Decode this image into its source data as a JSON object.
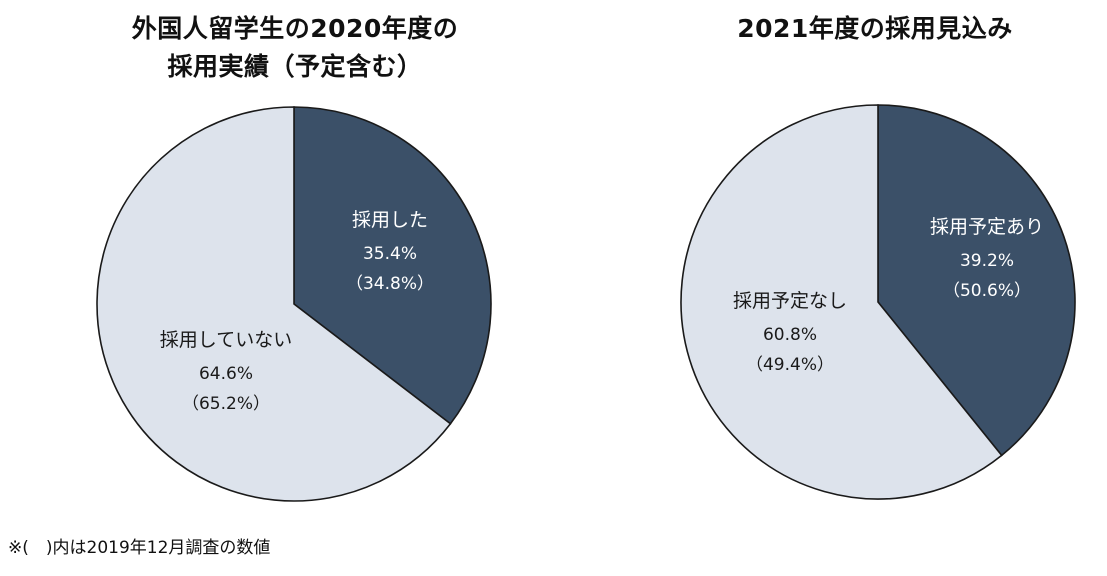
{
  "footnote": "※(　)内は2019年12月調査の数値",
  "colors": {
    "dark": "#3b5068",
    "light": "#dde3ec",
    "stroke": "#1a1a1a",
    "label_on_dark": "#ffffff",
    "label_on_light": "#1a1a1a"
  },
  "chart_data": [
    {
      "type": "pie",
      "title_lines": [
        "外国人留学生の2020年度の",
        "採用実績（予定含む）"
      ],
      "slices": [
        {
          "label": "採用した",
          "value": 35.4,
          "value_text": "35.4%",
          "prev_text": "（34.8%）",
          "color": "#3b5068"
        },
        {
          "label": "採用していない",
          "value": 64.6,
          "value_text": "64.6%",
          "prev_text": "（65.2%）",
          "color": "#dde3ec"
        }
      ]
    },
    {
      "type": "pie",
      "title_lines": [
        "2021年度の採用見込み"
      ],
      "slices": [
        {
          "label": "採用予定あり",
          "value": 39.2,
          "value_text": "39.2%",
          "prev_text": "（50.6%）",
          "color": "#3b5068"
        },
        {
          "label": "採用予定なし",
          "value": 60.8,
          "value_text": "60.8%",
          "prev_text": "（49.4%）",
          "color": "#dde3ec"
        }
      ]
    }
  ]
}
